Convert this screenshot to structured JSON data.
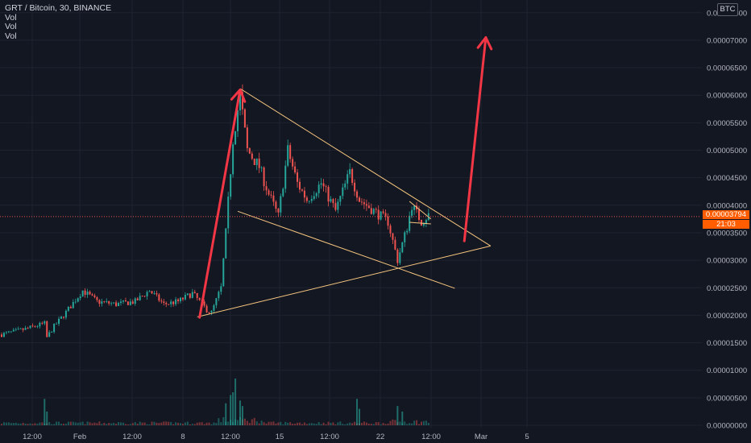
{
  "header": {
    "symbol_line": "GRT / Bitcoin, 30, BINANCE",
    "indicators": [
      "Vol",
      "Vol",
      "Vol"
    ],
    "currency_badge": "BTC"
  },
  "price_tag": {
    "price": "0.00003794",
    "countdown": "21:03"
  },
  "colors": {
    "background": "#131722",
    "up": "#26a69a",
    "down": "#ef5350",
    "arrow": "#f23645",
    "trendline": "#f6c57f",
    "tag": "#ff5d00"
  },
  "chart_data": {
    "type": "candlestick",
    "y_tick_labels": [
      "0.00007500",
      "0.00007000",
      "0.00006500",
      "0.00006000",
      "0.00005500",
      "0.00005000",
      "0.00004500",
      "0.00004000",
      "0.00003500",
      "0.00003000",
      "0.00002500",
      "0.00002000",
      "0.00001500",
      "0.00001000",
      "0.00000500",
      "0.00000000"
    ],
    "x_tick_labels": [
      "12:00",
      "Feb",
      "12:00",
      "8",
      "12:00",
      "15",
      "12:00",
      "22",
      "12:00",
      "Mar",
      "5"
    ],
    "price_path": [
      {
        "x": 0,
        "y": 1.65e-05
      },
      {
        "x": 10,
        "y": 1.75e-05
      },
      {
        "x": 18,
        "y": 1.85e-05
      },
      {
        "x": 19,
        "y": 1.6e-05
      },
      {
        "x": 22,
        "y": 1.8e-05
      },
      {
        "x": 26,
        "y": 2e-05
      },
      {
        "x": 34,
        "y": 2.45e-05
      },
      {
        "x": 40,
        "y": 2.25e-05
      },
      {
        "x": 48,
        "y": 2.2e-05
      },
      {
        "x": 56,
        "y": 2.25e-05
      },
      {
        "x": 62,
        "y": 2.45e-05
      },
      {
        "x": 68,
        "y": 2.2e-05
      },
      {
        "x": 74,
        "y": 2.25e-05
      },
      {
        "x": 80,
        "y": 2.4e-05
      },
      {
        "x": 86,
        "y": 2.1e-05
      },
      {
        "x": 88,
        "y": 2.05e-05
      },
      {
        "x": 92,
        "y": 2.5e-05
      },
      {
        "x": 94,
        "y": 3.5e-05
      },
      {
        "x": 97,
        "y": 5.2e-05
      },
      {
        "x": 100,
        "y": 6e-05
      },
      {
        "x": 103,
        "y": 5e-05
      },
      {
        "x": 108,
        "y": 4.7e-05
      },
      {
        "x": 112,
        "y": 4.2e-05
      },
      {
        "x": 116,
        "y": 3.8e-05
      },
      {
        "x": 120,
        "y": 5e-05
      },
      {
        "x": 124,
        "y": 4.4e-05
      },
      {
        "x": 128,
        "y": 4.1e-05
      },
      {
        "x": 134,
        "y": 4.4e-05
      },
      {
        "x": 140,
        "y": 3.9e-05
      },
      {
        "x": 146,
        "y": 4.6e-05
      },
      {
        "x": 150,
        "y": 4.1e-05
      },
      {
        "x": 156,
        "y": 3.9e-05
      },
      {
        "x": 162,
        "y": 3.7e-05
      },
      {
        "x": 166,
        "y": 3e-05
      },
      {
        "x": 170,
        "y": 3.6e-05
      },
      {
        "x": 172,
        "y": 4e-05
      },
      {
        "x": 176,
        "y": 3.7e-05
      },
      {
        "x": 179,
        "y": 3.82e-05
      }
    ],
    "vol_spikes": [
      {
        "x": 18,
        "y": 4.8e-06
      },
      {
        "x": 19,
        "y": 2.5e-06
      },
      {
        "x": 94,
        "y": 4e-06
      },
      {
        "x": 96,
        "y": 5.5e-06
      },
      {
        "x": 97,
        "y": 6e-06
      },
      {
        "x": 98,
        "y": 8.5e-06
      },
      {
        "x": 100,
        "y": 4.5e-06
      },
      {
        "x": 101,
        "y": 3.5e-06
      },
      {
        "x": 149,
        "y": 4.8e-06
      },
      {
        "x": 150,
        "y": 3e-06
      },
      {
        "x": 166,
        "y": 3.5e-06
      },
      {
        "x": 168,
        "y": 2.5e-06
      }
    ],
    "drawings": {
      "trend_lines": [
        {
          "from": {
            "x": 100,
            "y": 6.12e-05
          },
          "to": {
            "x": 205,
            "y": 3.26e-05
          }
        },
        {
          "from": {
            "x": 82,
            "y": 1.97e-05
          },
          "to": {
            "x": 205,
            "y": 3.26e-05
          }
        },
        {
          "from": {
            "x": 99,
            "y": 3.89e-05
          },
          "to": {
            "x": 190,
            "y": 2.49e-05
          }
        },
        {
          "from": {
            "x": 171,
            "y": 4.07e-05
          },
          "to": {
            "x": 180,
            "y": 3.75e-05
          }
        },
        {
          "from": {
            "x": 171,
            "y": 3.69e-05
          },
          "to": {
            "x": 180,
            "y": 3.66e-05
          }
        }
      ],
      "arrows": [
        {
          "from": {
            "x": 83,
            "y": 1.96e-05
          },
          "to": {
            "x": 100,
            "y": 6.1e-05
          }
        },
        {
          "from": {
            "x": 194,
            "y": 3.35e-05
          },
          "to": {
            "x": 203,
            "y": 7.05e-05
          }
        }
      ]
    }
  }
}
